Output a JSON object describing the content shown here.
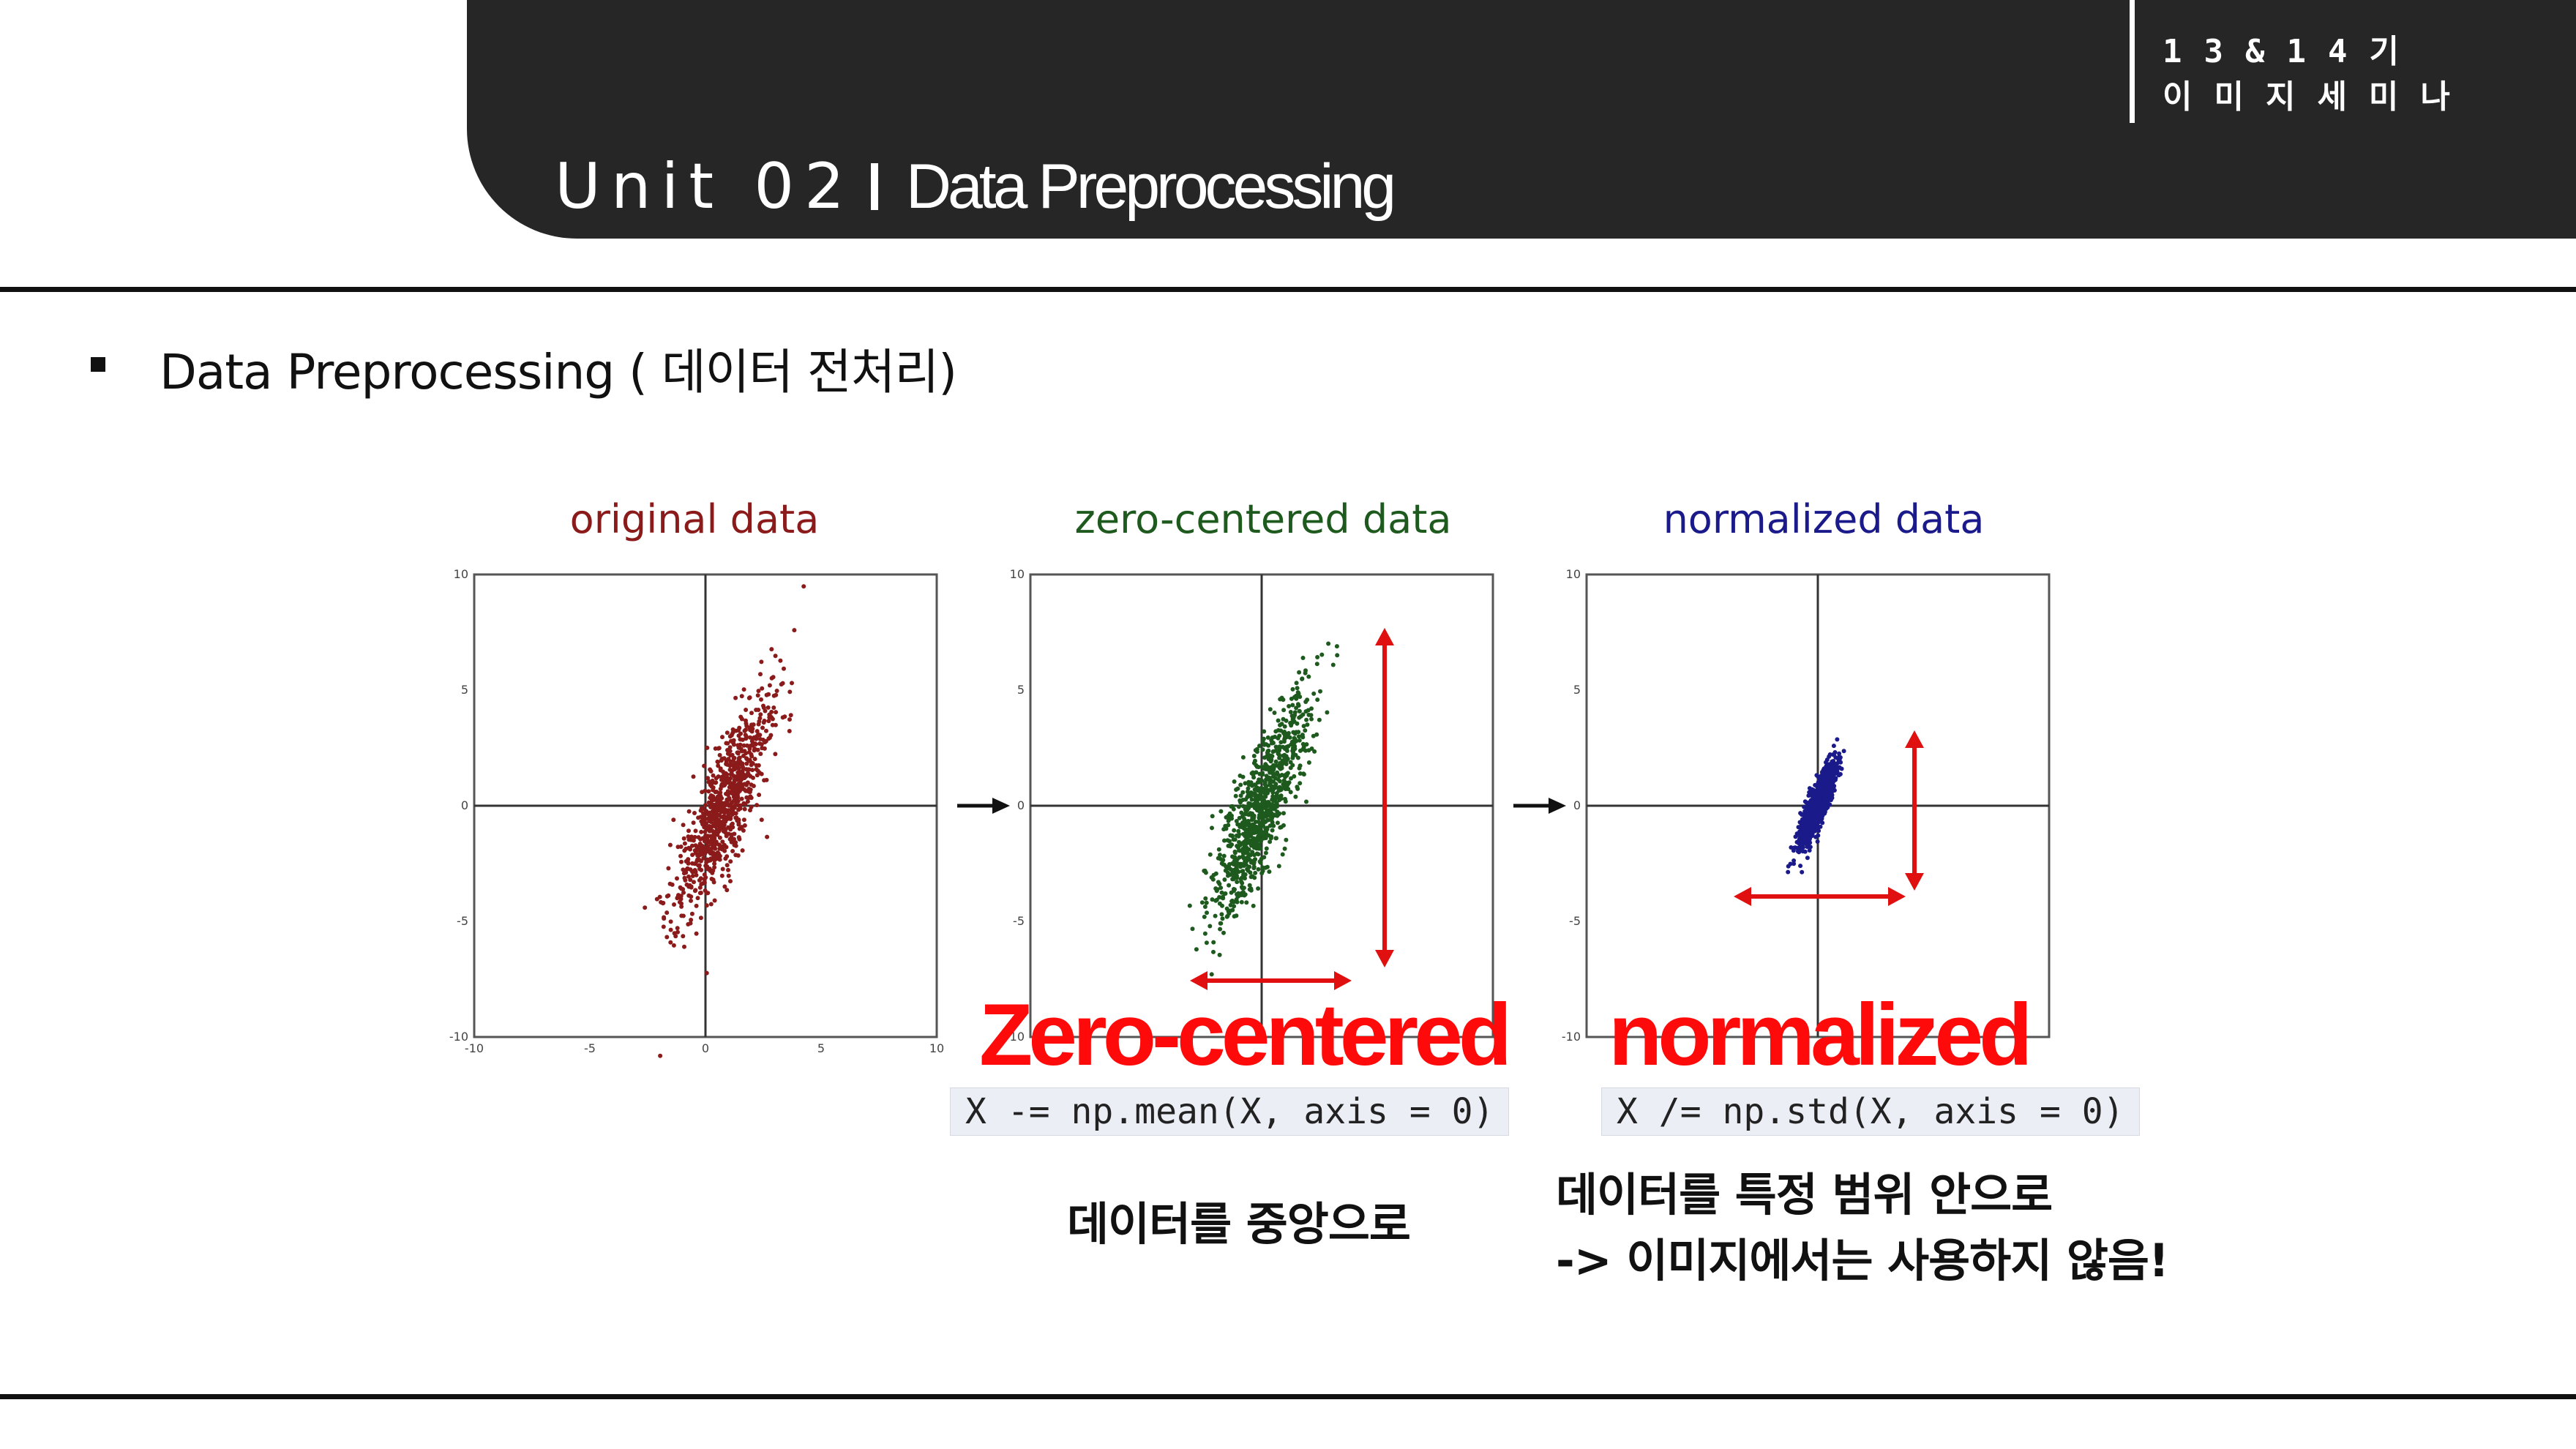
{
  "header": {
    "cohort_line1": "13&14기",
    "cohort_line2": "이미지세미나",
    "unit": "Unit 02",
    "topic": "Data Preprocessing"
  },
  "slide": {
    "heading": "Data Preprocessing ( 데이터 전처리)"
  },
  "figure": {
    "panels": [
      {
        "title": "original data",
        "color": "#8b1a1a"
      },
      {
        "title": "zero-centered data",
        "color": "#1e5a1e"
      },
      {
        "title": "normalized data",
        "color": "#1a1a8b"
      }
    ],
    "tick_labels": [
      "10",
      "5",
      "0",
      "-5",
      "-10"
    ],
    "x_tick_labels": [
      "-10",
      "-5",
      "0",
      "5",
      "10"
    ],
    "arrow_color": "#e01010"
  },
  "annotations": {
    "zero_centered_label": "Zero-centered",
    "normalized_label": "normalized",
    "zero_centered_code": "X -= np.mean(X, axis = 0)",
    "normalized_code": "X /= np.std(X, axis = 0)",
    "zero_centered_caption": "데이터를 중앙으로",
    "normalized_caption_line1": "데이터를 특정 범위 안으로",
    "normalized_caption_line2": "-> 이미지에서는 사용하지 않음!"
  }
}
